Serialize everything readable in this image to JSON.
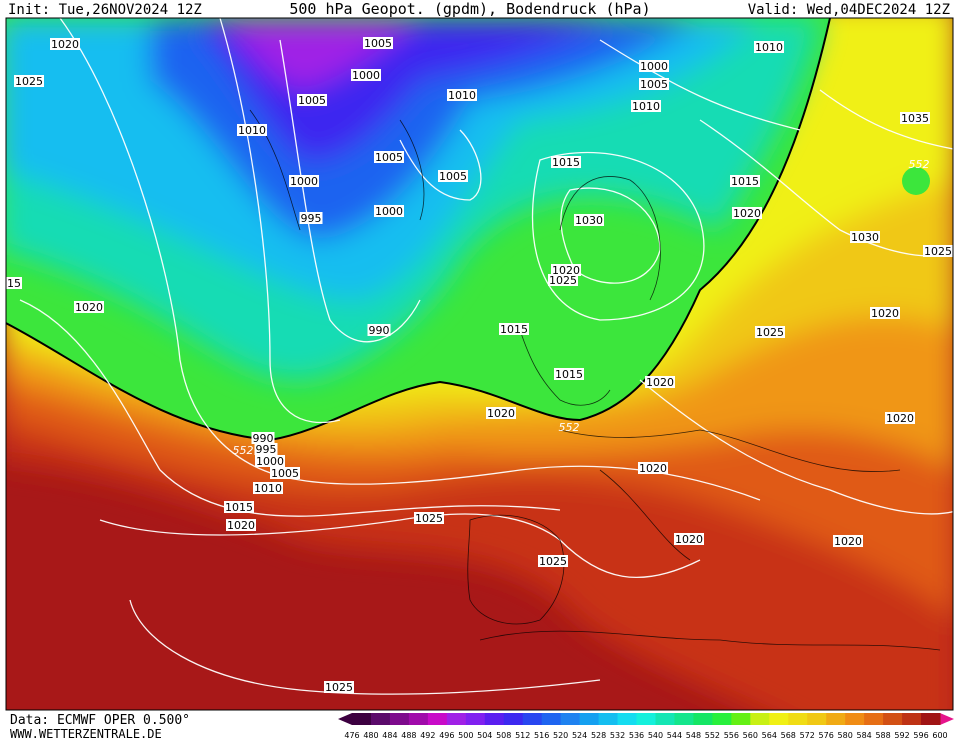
{
  "header": {
    "init": "Init: Tue,26NOV2024 12Z",
    "title": "500 hPa Geopot. (gpdm), Bodendruck (hPa)",
    "valid": "Valid: Wed,04DEC2024 12Z"
  },
  "footer": {
    "source": "Data: ECMWF OPER 0.500°",
    "website": "WWW.WETTERZENTRALE.DE"
  },
  "isobar_labels": [
    "1020",
    "1025",
    "1005",
    "1000",
    "1005",
    "1010",
    "1000",
    "1005",
    "1010",
    "1010",
    "1035",
    "1010",
    "1005",
    "1005",
    "1015",
    "1015",
    "1000",
    "1000",
    "995",
    "1030",
    "1020",
    "1030",
    "1025",
    "1020",
    "1025",
    "15",
    "1020",
    "990",
    "1015",
    "1025",
    "1020",
    "1015",
    "1020",
    "1020",
    "990",
    "995",
    "1000",
    "1005",
    "1010",
    "1020",
    "1020",
    "1015",
    "1020",
    "1025",
    "1020",
    "1020",
    "1025",
    "1025"
  ],
  "geopotential_labels": [
    "552",
    "552",
    "552"
  ],
  "colorbar": {
    "levels": [
      476,
      480,
      484,
      488,
      492,
      496,
      500,
      504,
      508,
      512,
      516,
      520,
      524,
      528,
      532,
      536,
      540,
      544,
      548,
      552,
      556,
      560,
      564,
      568,
      572,
      576,
      580,
      584,
      588,
      592,
      596,
      600
    ],
    "colors": [
      "#3c0040",
      "#5a0a6a",
      "#7d0a8c",
      "#a00aaa",
      "#c80ac8",
      "#a020e6",
      "#8020f0",
      "#5a1ef0",
      "#3c28f0",
      "#2846f0",
      "#1e64f0",
      "#1e82f0",
      "#14a0f0",
      "#14bef0",
      "#14dcf0",
      "#14f0dc",
      "#14e6b4",
      "#14e68c",
      "#14e664",
      "#28f03c",
      "#64f014",
      "#c8f014",
      "#f0f014",
      "#f0dc14",
      "#f0c814",
      "#f0aa14",
      "#f08c14",
      "#e66e14",
      "#d25014",
      "#be3214",
      "#a01414"
    ]
  }
}
